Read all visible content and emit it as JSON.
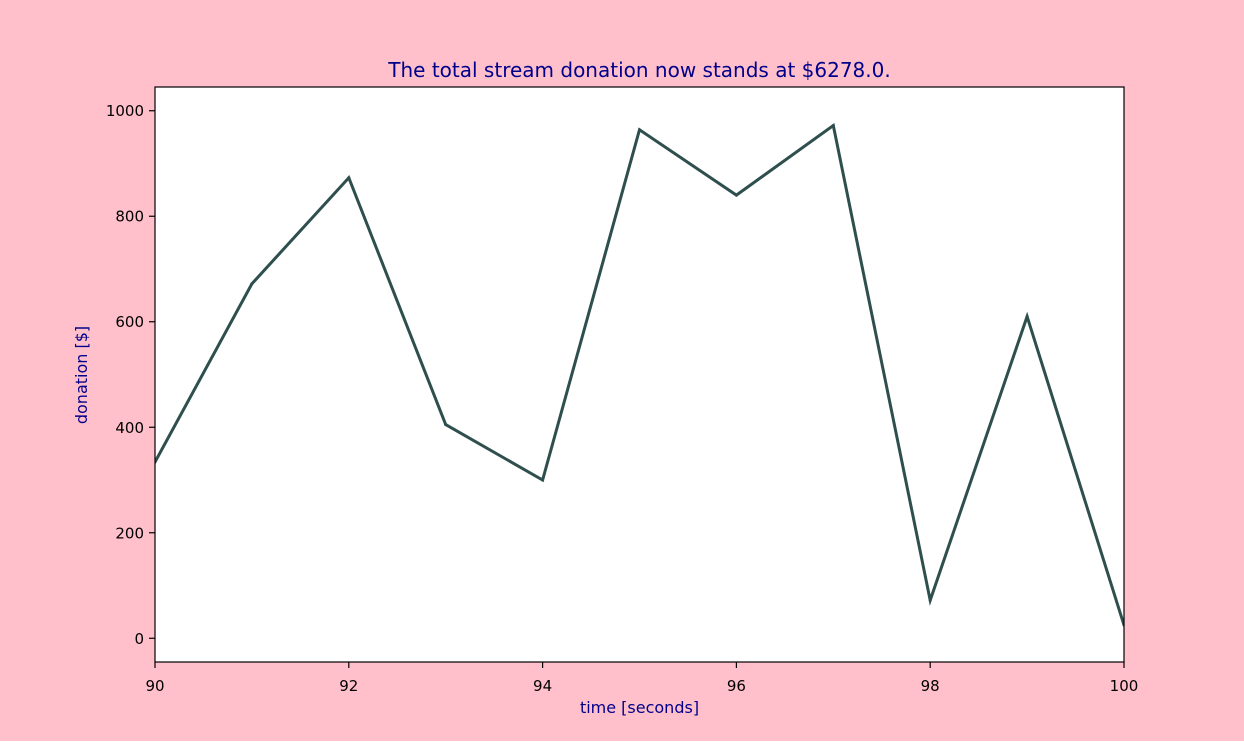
{
  "figure": {
    "background": "#ffc0cb",
    "plot_background": "#ffffff"
  },
  "chart_data": {
    "type": "line",
    "title": "The total stream donation now stands at $6278.0.",
    "xlabel": "time [seconds]",
    "ylabel": "donation [$]",
    "xlim": [
      90,
      100
    ],
    "ylim": [
      -45,
      1045
    ],
    "x_ticks": [
      90,
      92,
      94,
      96,
      98,
      100
    ],
    "y_ticks": [
      0,
      200,
      400,
      600,
      800,
      1000
    ],
    "grid": false,
    "legend": "none",
    "title_color": "#00008b",
    "label_color": "#00008b",
    "line_color": "#2f4f4f",
    "series": [
      {
        "x": [
          90,
          91,
          92,
          93,
          94,
          95,
          96,
          97,
          98,
          99,
          100
        ],
        "values": [
          334,
          672,
          873,
          405,
          300,
          964,
          840,
          972,
          72,
          610,
          25
        ]
      }
    ]
  }
}
